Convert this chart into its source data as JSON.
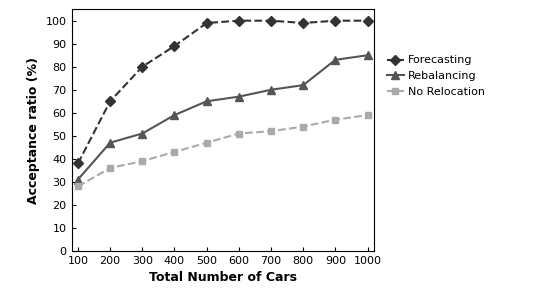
{
  "x": [
    100,
    200,
    300,
    400,
    500,
    600,
    700,
    800,
    900,
    1000
  ],
  "forecasting": [
    38,
    65,
    80,
    89,
    99,
    100,
    100,
    99,
    100,
    100
  ],
  "rebalancing": [
    31,
    47,
    51,
    59,
    65,
    67,
    70,
    72,
    83,
    85
  ],
  "no_relocation": [
    28,
    36,
    39,
    43,
    47,
    51,
    52,
    54,
    57,
    59
  ],
  "xlabel": "Total Number of Cars",
  "ylabel": "Acceptance ratio (%)",
  "ylim": [
    0,
    105
  ],
  "xlim": [
    80,
    1020
  ],
  "xticks": [
    100,
    200,
    300,
    400,
    500,
    600,
    700,
    800,
    900,
    1000
  ],
  "yticks": [
    0,
    10,
    20,
    30,
    40,
    50,
    60,
    70,
    80,
    90,
    100
  ],
  "forecasting_color": "#333333",
  "rebalancing_color": "#555555",
  "no_relocation_color": "#aaaaaa",
  "legend_labels": [
    "Forecasting",
    "Rebalancing",
    "No Relocation"
  ],
  "background_color": "#ffffff"
}
